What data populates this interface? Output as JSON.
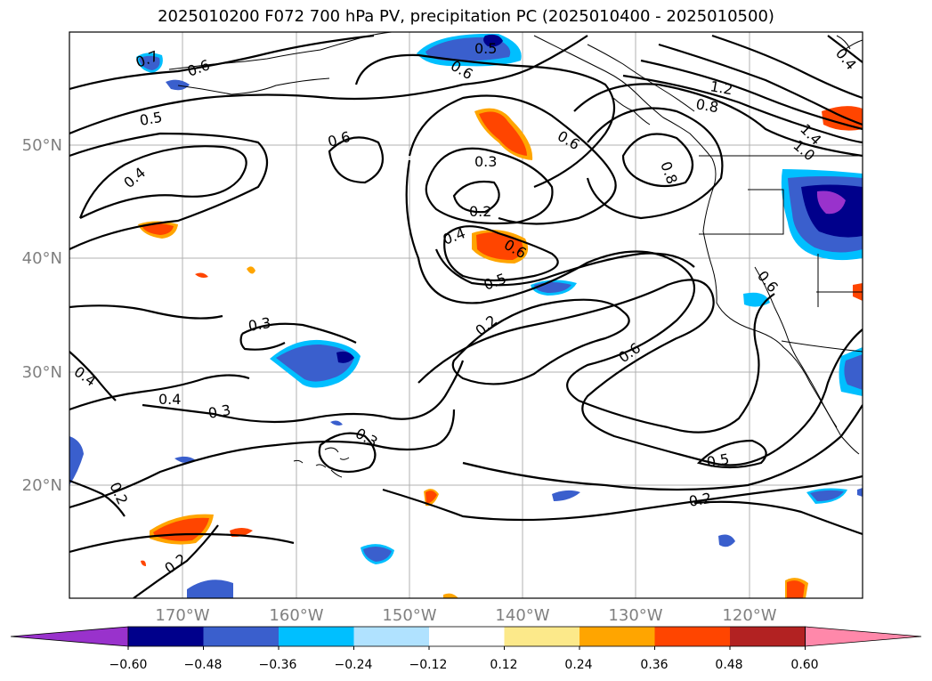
{
  "title": "2025010200 F072 700 hPa PV, precipitation PC (2025010400 - 2025010500)",
  "lat_labels": [
    "50°N",
    "40°N",
    "30°N",
    "20°N"
  ],
  "lon_labels": [
    "170°W",
    "160°W",
    "150°W",
    "140°W",
    "130°W",
    "120°W"
  ],
  "contour_labels": [
    "0.7",
    "0.6",
    "0.5",
    "0.5",
    "0.6",
    "0.6",
    "0.6",
    "0.3",
    "0.2",
    "0.4",
    "0.6",
    "0.5",
    "0.4",
    "1.2",
    "0.8",
    "1.4",
    "1.0",
    "0.8",
    "0.6",
    "0.4",
    "0.2",
    "0.3",
    "0.6",
    "0.4",
    "0.4",
    "0.3",
    "0.3",
    "0.5",
    "0.2",
    "0.2",
    "0.2"
  ],
  "colorbar": {
    "ticks": [
      "−0.60",
      "−0.48",
      "−0.36",
      "−0.24",
      "−0.12",
      "0.12",
      "0.24",
      "0.36",
      "0.48",
      "0.60"
    ],
    "colors": [
      "#9932cc",
      "#00008b",
      "#3a5fcd",
      "#00bfff",
      "#b0e2ff",
      "#ffffff",
      "#fce98a",
      "#ffa500",
      "#ff4500",
      "#b22222",
      "#ff88aa"
    ]
  }
}
